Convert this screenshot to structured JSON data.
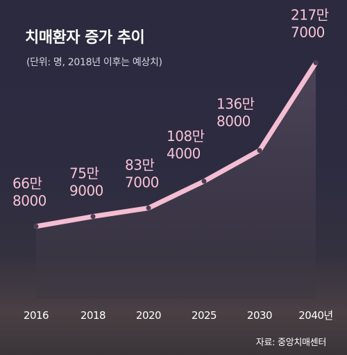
{
  "header": {
    "title": "치매환자 증가 추이",
    "subtitle": "(단위: 명, 2018년 이후는 예상치)"
  },
  "footer": {
    "source": "자료: 중앙치매센터"
  },
  "colors": {
    "line": "#f4bdd2",
    "label": "#f7c2d6",
    "marker": "#4a3d4f",
    "area_top": "#6a5a6e",
    "area_bottom": "#3a3440"
  },
  "chart_data": {
    "type": "area",
    "title": "치매환자 증가 추이",
    "subtitle": "(단위: 명, 2018년 이후는 예상치)",
    "xlabel": "",
    "ylabel": "",
    "categories": [
      "2016",
      "2018",
      "2020",
      "2025",
      "2030",
      "2040년"
    ],
    "series": [
      {
        "values": [
          668000,
          759000,
          837000,
          1084000,
          1368000,
          2177000
        ]
      }
    ],
    "data_labels": [
      [
        "66만",
        "8000"
      ],
      [
        "75만",
        "9000"
      ],
      [
        "83만",
        "7000"
      ],
      [
        "108만",
        "4000"
      ],
      [
        "136만",
        "8000"
      ],
      [
        "217만",
        "7000"
      ]
    ],
    "ylim": [
      0,
      2500000
    ],
    "grid": false,
    "legend": "none"
  }
}
